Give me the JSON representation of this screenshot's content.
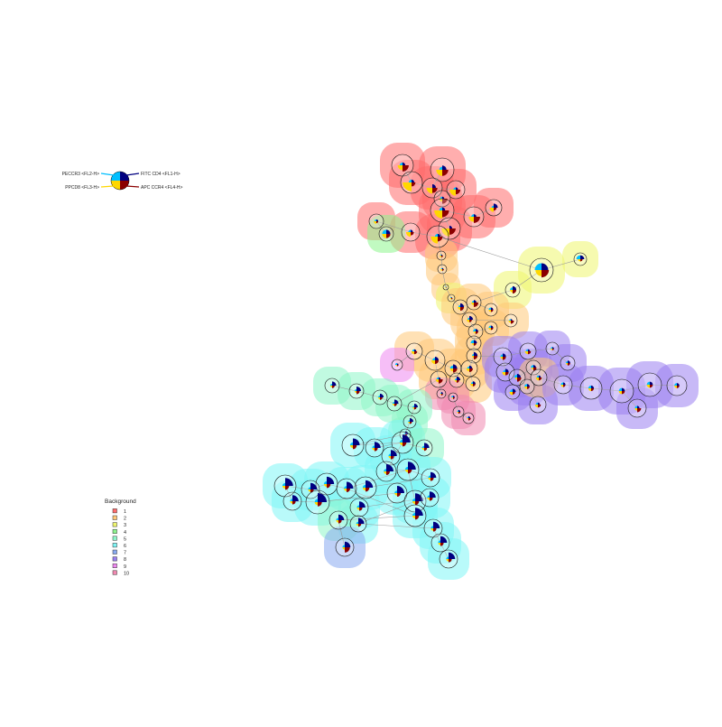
{
  "marker_legend": {
    "items": [
      {
        "label": "FITC CD4 <FL1-H>",
        "color": "#000080"
      },
      {
        "label": "PECCR3 <FL2-H>",
        "color": "#00bfff"
      },
      {
        "label": "PPCD8 <FL3-H>",
        "color": "#ffd700"
      },
      {
        "label": "APC CCR4 <FL4-H>",
        "color": "#8b0000"
      }
    ]
  },
  "background_legend": {
    "title": "Background",
    "items": [
      {
        "label": "1",
        "color": "#ff6b6b"
      },
      {
        "label": "2",
        "color": "#ffc878"
      },
      {
        "label": "3",
        "color": "#eef56e"
      },
      {
        "label": "4",
        "color": "#8ef58e"
      },
      {
        "label": "5",
        "color": "#8ef5c8"
      },
      {
        "label": "6",
        "color": "#7ff5f5"
      },
      {
        "label": "7",
        "color": "#88aaf0"
      },
      {
        "label": "8",
        "color": "#9a80f0"
      },
      {
        "label": "9",
        "color": "#ee88f0"
      },
      {
        "label": "10",
        "color": "#f088b0"
      }
    ]
  }
}
